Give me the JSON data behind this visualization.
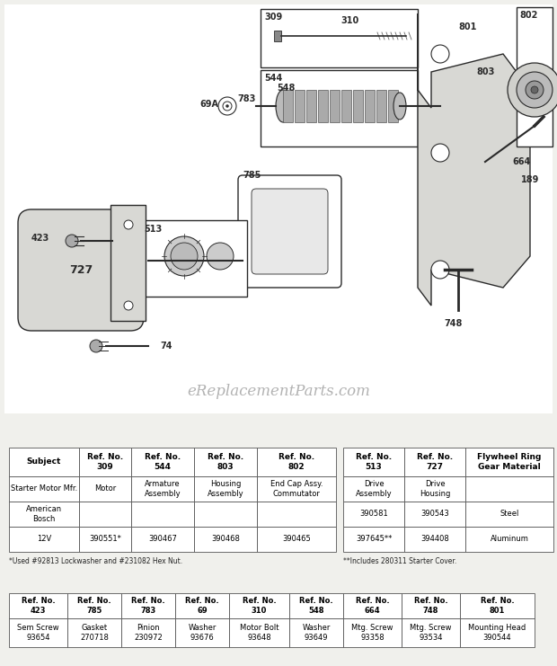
{
  "bg_color": "#f0f0ec",
  "diagram_bg": "#ffffff",
  "watermark": "eReplacementParts.com",
  "fig_w": 6.2,
  "fig_h": 7.41,
  "table1": {
    "headers": [
      "Subject",
      "Ref. No.\n309",
      "Ref. No.\n544",
      "Ref. No.\n803",
      "Ref. No.\n802"
    ],
    "row1": [
      "Starter Motor Mfr.",
      "Motor",
      "Armature\nAssembly",
      "Housing\nAssembly",
      "End Cap Assy.\nCommutator"
    ],
    "row2": [
      "American\nBosch",
      "",
      "",
      "",
      ""
    ],
    "row3": [
      "12V",
      "390551*",
      "390467",
      "390468",
      "390465"
    ],
    "footnote": "*Used #92813 Lockwasher and #231082 Hex Nut."
  },
  "table2": {
    "headers": [
      "Ref. No.\n513",
      "Ref. No.\n727",
      "Flywheel Ring\nGear Material"
    ],
    "row1": [
      "Drive\nAssembly",
      "Drive\nHousing",
      ""
    ],
    "row2": [
      "390581",
      "390543",
      "Steel"
    ],
    "row3": [
      "397645**",
      "394408",
      "Aluminum"
    ],
    "footnote": "**Includes 280311 Starter Cover."
  },
  "table3": {
    "headers": [
      "Ref. No.\n423",
      "Ref. No.\n785",
      "Ref. No.\n783",
      "Ref. No.\n69",
      "Ref. No.\n310",
      "Ref. No.\n548",
      "Ref. No.\n664",
      "Ref. No.\n748",
      "Ref. No.\n801"
    ],
    "row1": [
      "Sem Screw\n93654",
      "Gasket\n270718",
      "Pinion\n230972",
      "Washer\n93676",
      "Motor Bolt\n93648",
      "Washer\n93649",
      "Mtg. Screw\n93358",
      "Mtg. Screw\n93534",
      "Mounting Head\n390544"
    ]
  }
}
